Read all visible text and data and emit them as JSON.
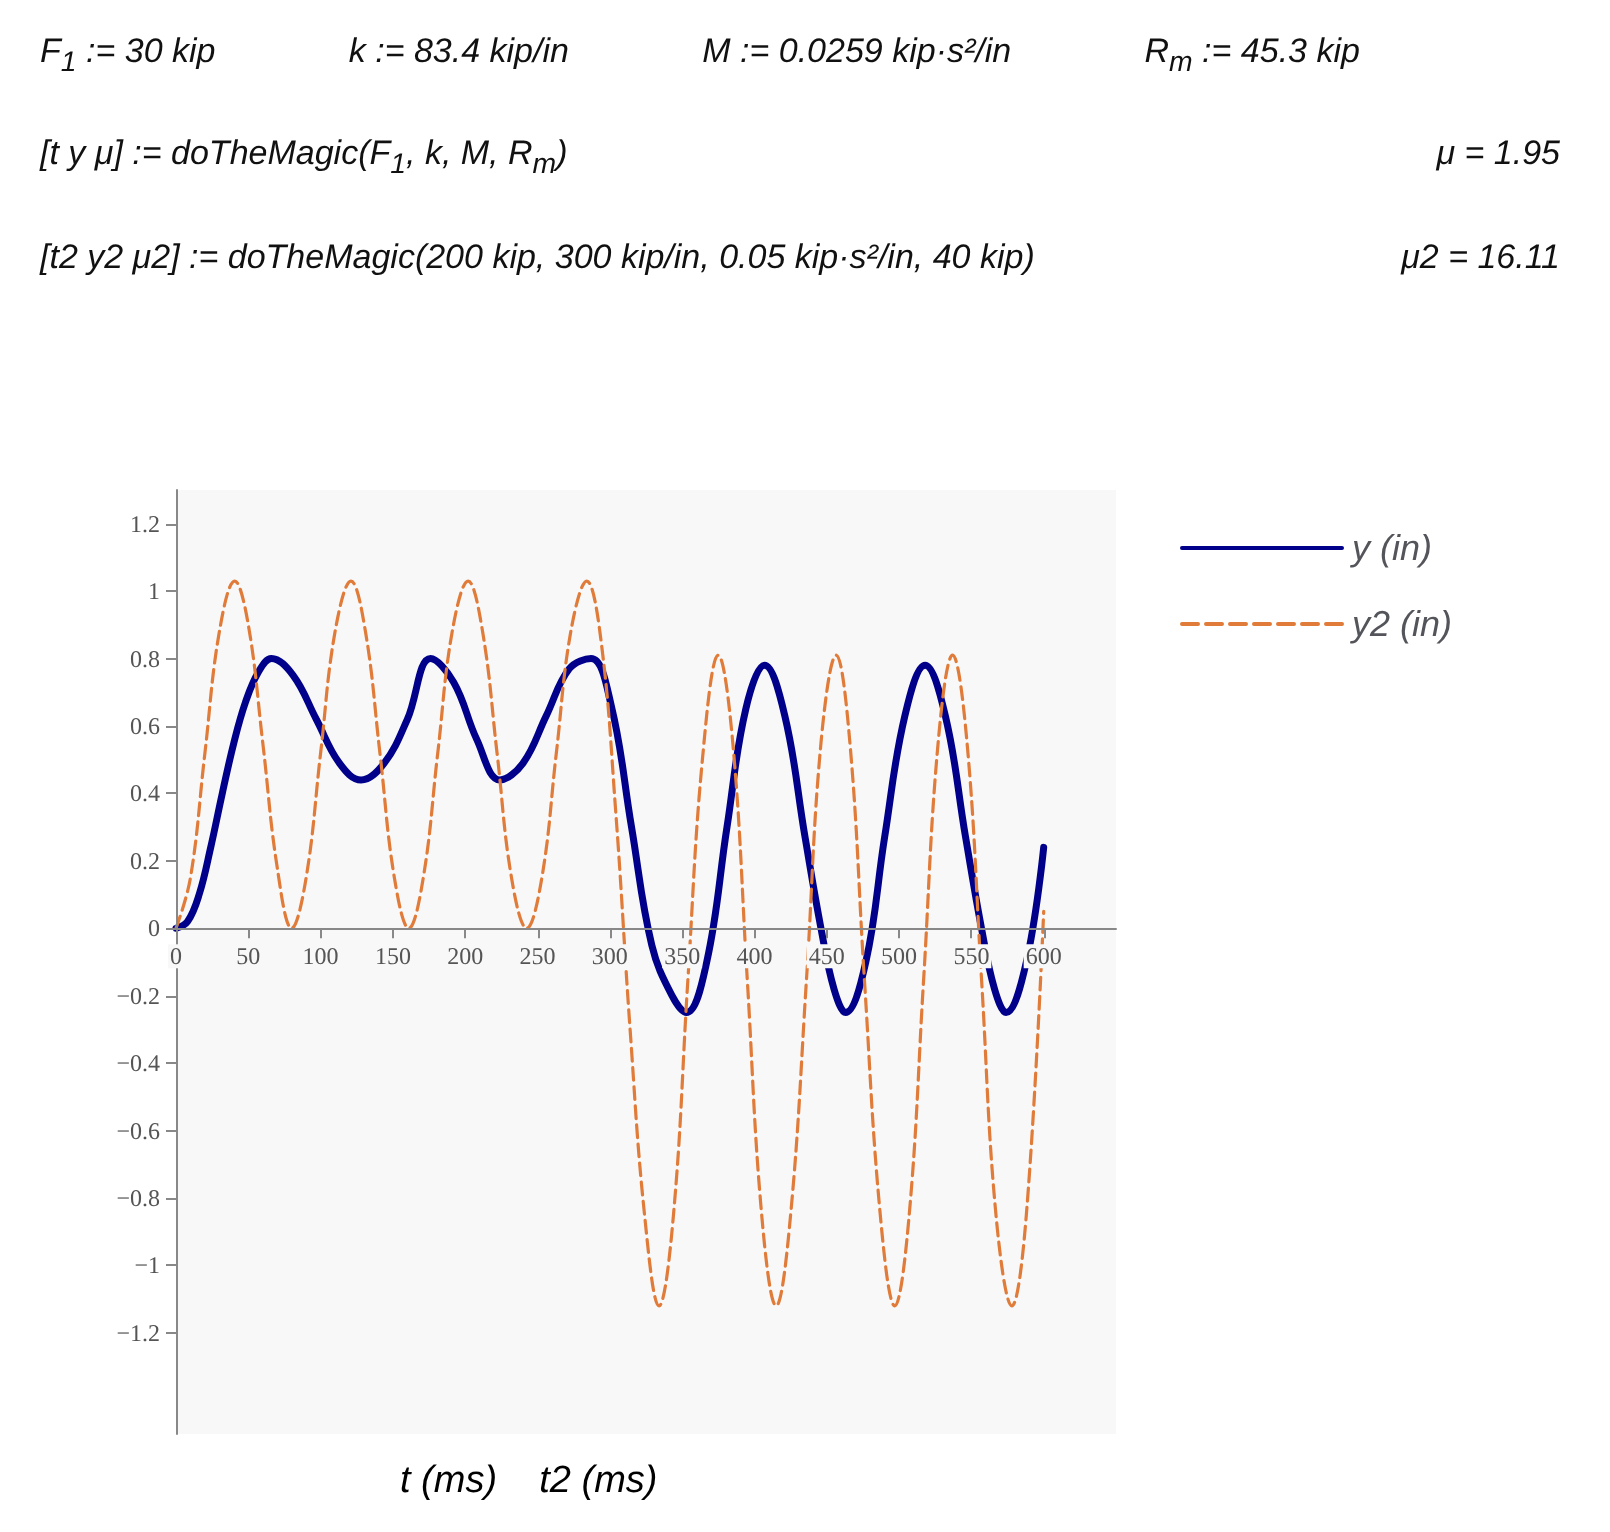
{
  "chart_data": {
    "type": "line",
    "annotations": [
      "F$_{1}$ := 30 kip",
      "k := 83.4 kip/in",
      "M := 0.0259 kip·s²/in",
      "R$_{m}$ := 45.3 kip",
      "[t  y  μ] := doTheMagic(F$_{1}$, k, M, R$_{m}$)",
      "μ = 1.95",
      "[t2  y2  μ2] := doTheMagic(200 kip, 300 kip/in, 0.05 kip·s²/in, 40 kip)",
      "μ2 = 16.11"
    ],
    "xlabel": "t (ms)    t2 (ms)",
    "xlim": [
      0,
      650
    ],
    "xticks": [
      0,
      50,
      100,
      150,
      200,
      250,
      300,
      350,
      400,
      450,
      500,
      550,
      600
    ],
    "ylim": [
      -1.5,
      1.3
    ],
    "yticks": [
      -1.2,
      -1,
      -0.8,
      -0.6,
      -0.4,
      -0.2,
      0,
      0.2,
      0.4,
      0.6,
      0.8,
      1,
      1.2
    ],
    "legend": "right",
    "marker": "none",
    "series": [
      {
        "name": "y (in)",
        "color": "#00008b",
        "line_style": "solid",
        "x": [
          0,
          8,
          16,
          24,
          32,
          40,
          48,
          57,
          66,
          81,
          97,
          113,
          128,
          144,
          160,
          176,
          192,
          208,
          224,
          240,
          256,
          272,
          287,
          301,
          315,
          329,
          343,
          353,
          367,
          381,
          394,
          407,
          421,
          435,
          446,
          455,
          463,
          477,
          490,
          504,
          518,
          532,
          546,
          557,
          566,
          574,
          588,
          600
        ],
        "values": [
          0,
          0.02,
          0.1,
          0.24,
          0.4,
          0.55,
          0.67,
          0.76,
          0.8,
          0.75,
          0.62,
          0.49,
          0.44,
          0.49,
          0.62,
          0.8,
          0.73,
          0.56,
          0.44,
          0.49,
          0.63,
          0.77,
          0.8,
          0.66,
          0.3,
          -0.05,
          -0.2,
          -0.25,
          -0.1,
          0.3,
          0.65,
          0.78,
          0.63,
          0.27,
          0,
          -0.18,
          -0.25,
          -0.1,
          0.27,
          0.63,
          0.78,
          0.63,
          0.27,
          0,
          -0.18,
          -0.25,
          -0.1,
          0.24
        ]
      },
      {
        "name": "y2 (in)",
        "color": "#e07b39",
        "line_style": "dashed",
        "x": [
          0,
          10,
          20,
          30,
          40.6,
          50,
          60,
          70,
          80,
          90,
          100,
          110,
          121,
          131,
          141,
          151,
          161,
          171,
          181,
          191,
          202,
          212,
          222,
          232,
          242.5,
          253,
          263,
          273,
          284,
          294,
          304,
          314,
          324,
          334,
          344,
          354,
          364,
          375,
          385,
          395,
          405,
          415,
          425,
          436,
          446,
          456.5,
          466,
          476,
          487,
          497,
          507,
          517,
          527,
          537,
          547,
          557,
          567,
          578,
          588,
          600
        ],
        "values": [
          0,
          0.15,
          0.52,
          0.88,
          1.03,
          0.9,
          0.55,
          0.18,
          0,
          0.15,
          0.52,
          0.88,
          1.03,
          0.88,
          0.52,
          0.15,
          0,
          0.15,
          0.52,
          0.88,
          1.03,
          0.88,
          0.52,
          0.15,
          0,
          0.15,
          0.52,
          0.88,
          1.03,
          0.85,
          0.35,
          -0.3,
          -0.85,
          -1.12,
          -0.85,
          -0.15,
          0.5,
          0.81,
          0.55,
          -0.15,
          -0.85,
          -1.12,
          -0.85,
          -0.15,
          0.55,
          0.81,
          0.55,
          -0.15,
          -0.85,
          -1.12,
          -0.85,
          -0.15,
          0.55,
          0.81,
          0.55,
          -0.15,
          -0.85,
          -1.12,
          -0.85,
          0.05
        ]
      }
    ]
  }
}
